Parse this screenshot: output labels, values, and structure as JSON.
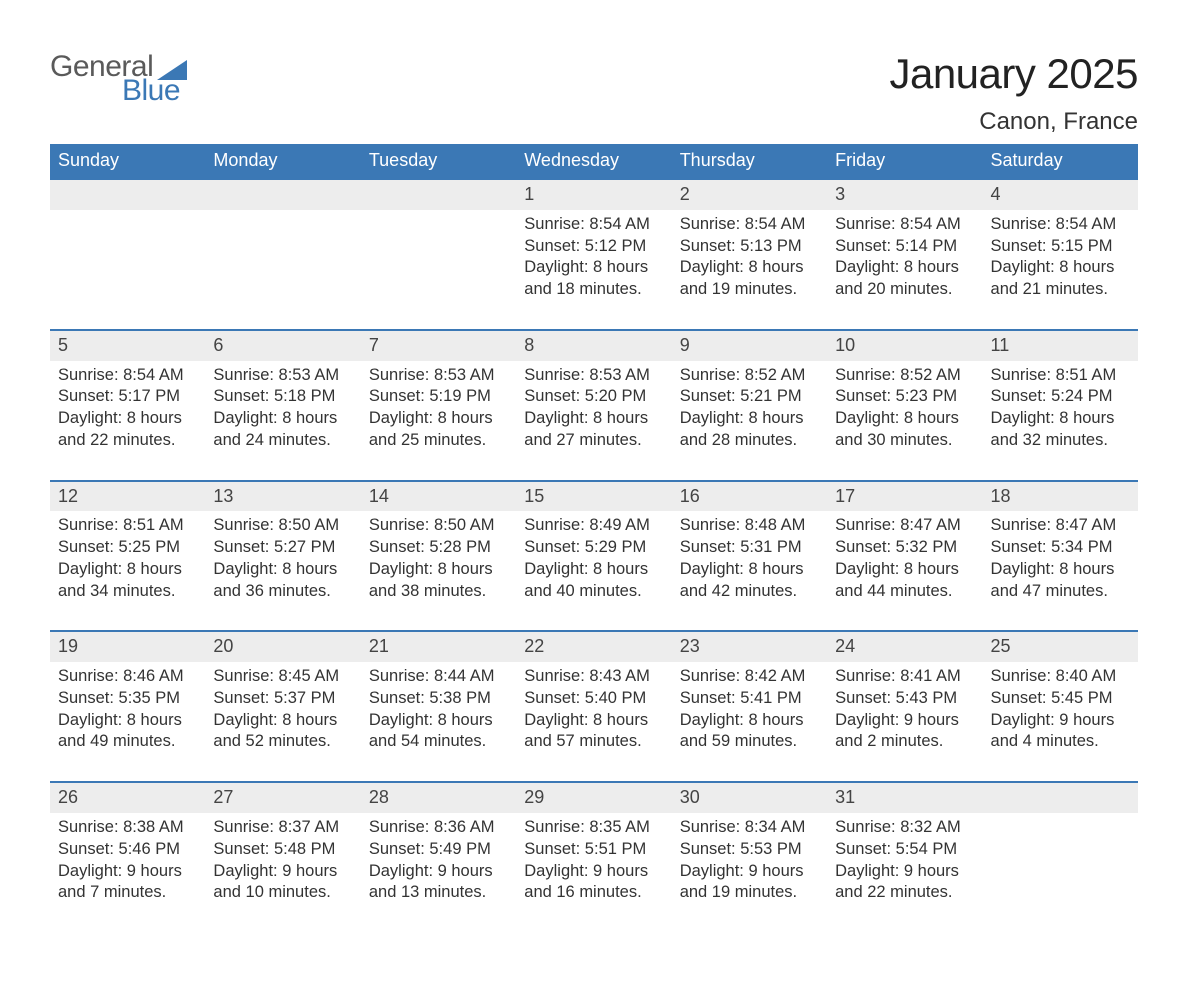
{
  "logo": {
    "word1": "General",
    "word2": "Blue"
  },
  "header": {
    "month_title": "January 2025",
    "location": "Canon, France"
  },
  "colors": {
    "accent": "#3b78b5",
    "header_row_bg": "#3b78b5",
    "daynum_bg": "#ededed",
    "text": "#333333",
    "logo_gray": "#5a5a5a"
  },
  "calendar": {
    "day_headers": [
      "Sunday",
      "Monday",
      "Tuesday",
      "Wednesday",
      "Thursday",
      "Friday",
      "Saturday"
    ],
    "weeks": [
      [
        {
          "day": ""
        },
        {
          "day": ""
        },
        {
          "day": ""
        },
        {
          "day": "1",
          "sunrise": "Sunrise: 8:54 AM",
          "sunset": "Sunset: 5:12 PM",
          "dl1": "Daylight: 8 hours",
          "dl2": "and 18 minutes."
        },
        {
          "day": "2",
          "sunrise": "Sunrise: 8:54 AM",
          "sunset": "Sunset: 5:13 PM",
          "dl1": "Daylight: 8 hours",
          "dl2": "and 19 minutes."
        },
        {
          "day": "3",
          "sunrise": "Sunrise: 8:54 AM",
          "sunset": "Sunset: 5:14 PM",
          "dl1": "Daylight: 8 hours",
          "dl2": "and 20 minutes."
        },
        {
          "day": "4",
          "sunrise": "Sunrise: 8:54 AM",
          "sunset": "Sunset: 5:15 PM",
          "dl1": "Daylight: 8 hours",
          "dl2": "and 21 minutes."
        }
      ],
      [
        {
          "day": "5",
          "sunrise": "Sunrise: 8:54 AM",
          "sunset": "Sunset: 5:17 PM",
          "dl1": "Daylight: 8 hours",
          "dl2": "and 22 minutes."
        },
        {
          "day": "6",
          "sunrise": "Sunrise: 8:53 AM",
          "sunset": "Sunset: 5:18 PM",
          "dl1": "Daylight: 8 hours",
          "dl2": "and 24 minutes."
        },
        {
          "day": "7",
          "sunrise": "Sunrise: 8:53 AM",
          "sunset": "Sunset: 5:19 PM",
          "dl1": "Daylight: 8 hours",
          "dl2": "and 25 minutes."
        },
        {
          "day": "8",
          "sunrise": "Sunrise: 8:53 AM",
          "sunset": "Sunset: 5:20 PM",
          "dl1": "Daylight: 8 hours",
          "dl2": "and 27 minutes."
        },
        {
          "day": "9",
          "sunrise": "Sunrise: 8:52 AM",
          "sunset": "Sunset: 5:21 PM",
          "dl1": "Daylight: 8 hours",
          "dl2": "and 28 minutes."
        },
        {
          "day": "10",
          "sunrise": "Sunrise: 8:52 AM",
          "sunset": "Sunset: 5:23 PM",
          "dl1": "Daylight: 8 hours",
          "dl2": "and 30 minutes."
        },
        {
          "day": "11",
          "sunrise": "Sunrise: 8:51 AM",
          "sunset": "Sunset: 5:24 PM",
          "dl1": "Daylight: 8 hours",
          "dl2": "and 32 minutes."
        }
      ],
      [
        {
          "day": "12",
          "sunrise": "Sunrise: 8:51 AM",
          "sunset": "Sunset: 5:25 PM",
          "dl1": "Daylight: 8 hours",
          "dl2": "and 34 minutes."
        },
        {
          "day": "13",
          "sunrise": "Sunrise: 8:50 AM",
          "sunset": "Sunset: 5:27 PM",
          "dl1": "Daylight: 8 hours",
          "dl2": "and 36 minutes."
        },
        {
          "day": "14",
          "sunrise": "Sunrise: 8:50 AM",
          "sunset": "Sunset: 5:28 PM",
          "dl1": "Daylight: 8 hours",
          "dl2": "and 38 minutes."
        },
        {
          "day": "15",
          "sunrise": "Sunrise: 8:49 AM",
          "sunset": "Sunset: 5:29 PM",
          "dl1": "Daylight: 8 hours",
          "dl2": "and 40 minutes."
        },
        {
          "day": "16",
          "sunrise": "Sunrise: 8:48 AM",
          "sunset": "Sunset: 5:31 PM",
          "dl1": "Daylight: 8 hours",
          "dl2": "and 42 minutes."
        },
        {
          "day": "17",
          "sunrise": "Sunrise: 8:47 AM",
          "sunset": "Sunset: 5:32 PM",
          "dl1": "Daylight: 8 hours",
          "dl2": "and 44 minutes."
        },
        {
          "day": "18",
          "sunrise": "Sunrise: 8:47 AM",
          "sunset": "Sunset: 5:34 PM",
          "dl1": "Daylight: 8 hours",
          "dl2": "and 47 minutes."
        }
      ],
      [
        {
          "day": "19",
          "sunrise": "Sunrise: 8:46 AM",
          "sunset": "Sunset: 5:35 PM",
          "dl1": "Daylight: 8 hours",
          "dl2": "and 49 minutes."
        },
        {
          "day": "20",
          "sunrise": "Sunrise: 8:45 AM",
          "sunset": "Sunset: 5:37 PM",
          "dl1": "Daylight: 8 hours",
          "dl2": "and 52 minutes."
        },
        {
          "day": "21",
          "sunrise": "Sunrise: 8:44 AM",
          "sunset": "Sunset: 5:38 PM",
          "dl1": "Daylight: 8 hours",
          "dl2": "and 54 minutes."
        },
        {
          "day": "22",
          "sunrise": "Sunrise: 8:43 AM",
          "sunset": "Sunset: 5:40 PM",
          "dl1": "Daylight: 8 hours",
          "dl2": "and 57 minutes."
        },
        {
          "day": "23",
          "sunrise": "Sunrise: 8:42 AM",
          "sunset": "Sunset: 5:41 PM",
          "dl1": "Daylight: 8 hours",
          "dl2": "and 59 minutes."
        },
        {
          "day": "24",
          "sunrise": "Sunrise: 8:41 AM",
          "sunset": "Sunset: 5:43 PM",
          "dl1": "Daylight: 9 hours",
          "dl2": "and 2 minutes."
        },
        {
          "day": "25",
          "sunrise": "Sunrise: 8:40 AM",
          "sunset": "Sunset: 5:45 PM",
          "dl1": "Daylight: 9 hours",
          "dl2": "and 4 minutes."
        }
      ],
      [
        {
          "day": "26",
          "sunrise": "Sunrise: 8:38 AM",
          "sunset": "Sunset: 5:46 PM",
          "dl1": "Daylight: 9 hours",
          "dl2": "and 7 minutes."
        },
        {
          "day": "27",
          "sunrise": "Sunrise: 8:37 AM",
          "sunset": "Sunset: 5:48 PM",
          "dl1": "Daylight: 9 hours",
          "dl2": "and 10 minutes."
        },
        {
          "day": "28",
          "sunrise": "Sunrise: 8:36 AM",
          "sunset": "Sunset: 5:49 PM",
          "dl1": "Daylight: 9 hours",
          "dl2": "and 13 minutes."
        },
        {
          "day": "29",
          "sunrise": "Sunrise: 8:35 AM",
          "sunset": "Sunset: 5:51 PM",
          "dl1": "Daylight: 9 hours",
          "dl2": "and 16 minutes."
        },
        {
          "day": "30",
          "sunrise": "Sunrise: 8:34 AM",
          "sunset": "Sunset: 5:53 PM",
          "dl1": "Daylight: 9 hours",
          "dl2": "and 19 minutes."
        },
        {
          "day": "31",
          "sunrise": "Sunrise: 8:32 AM",
          "sunset": "Sunset: 5:54 PM",
          "dl1": "Daylight: 9 hours",
          "dl2": "and 22 minutes."
        },
        {
          "day": ""
        }
      ]
    ]
  }
}
